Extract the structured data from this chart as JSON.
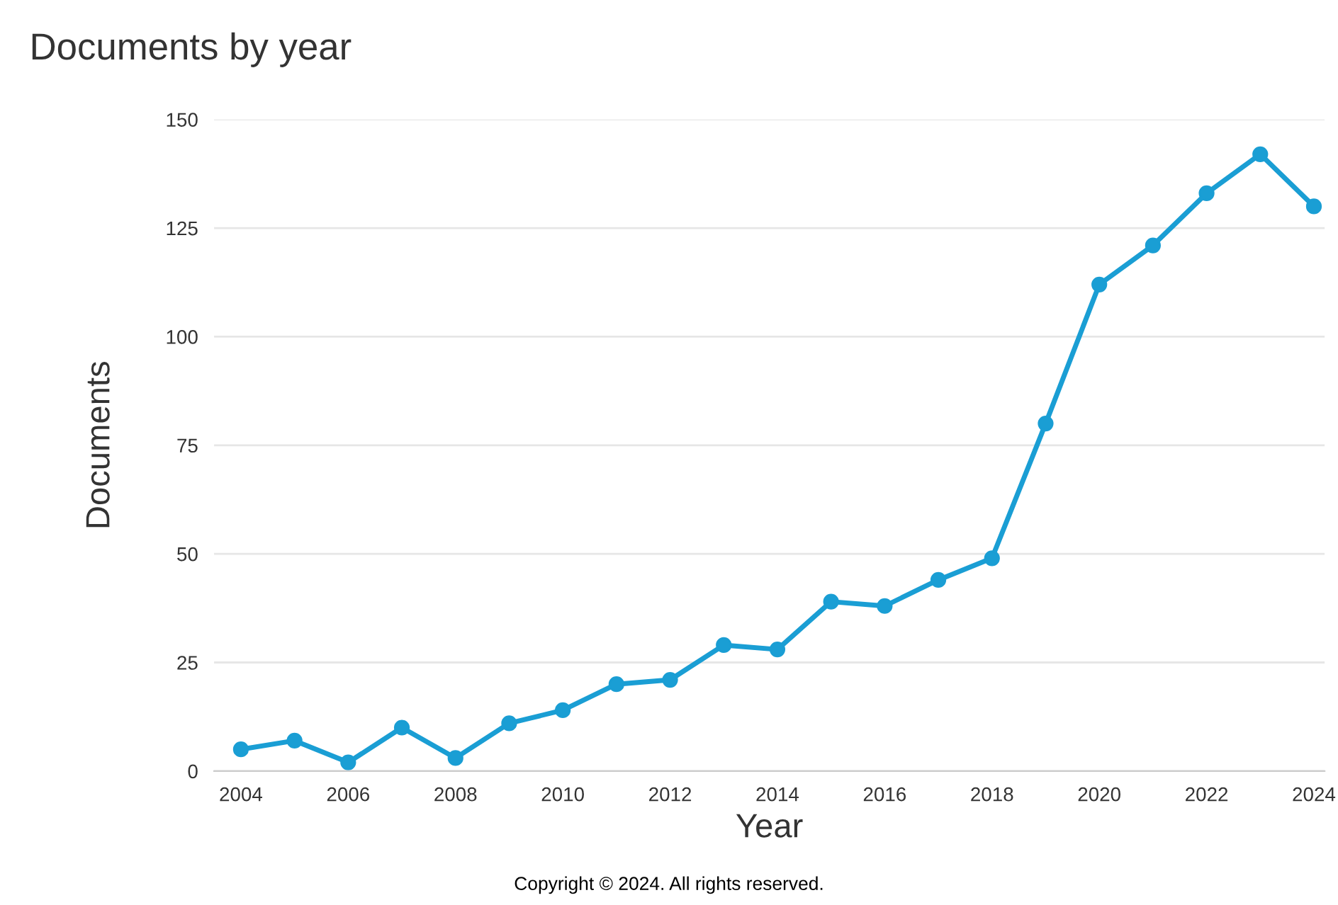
{
  "chart_data": {
    "type": "line",
    "title": "Documents by year",
    "xlabel": "Year",
    "ylabel": "Documents",
    "x": [
      2004,
      2005,
      2006,
      2007,
      2008,
      2009,
      2010,
      2011,
      2012,
      2013,
      2014,
      2015,
      2016,
      2017,
      2018,
      2019,
      2020,
      2021,
      2022,
      2023,
      2024
    ],
    "series": [
      {
        "color": "#1a9ed4",
        "values": [
          5,
          7,
          2,
          10,
          3,
          11,
          14,
          20,
          21,
          29,
          28,
          39,
          38,
          44,
          49,
          80,
          112,
          121,
          133,
          142,
          130
        ]
      }
    ],
    "xlim": [
      2003.5,
      2024.2
    ],
    "xticks": [
      2004,
      2006,
      2008,
      2010,
      2012,
      2014,
      2016,
      2018,
      2020,
      2022,
      2024
    ],
    "ylim": [
      0,
      150
    ],
    "yticks": [
      0,
      25,
      50,
      75,
      100,
      125,
      150
    ],
    "grid": "y",
    "marker": "circle",
    "line_style": "solid",
    "annotations": [
      "Copyright © 2024. All rights reserved."
    ]
  }
}
